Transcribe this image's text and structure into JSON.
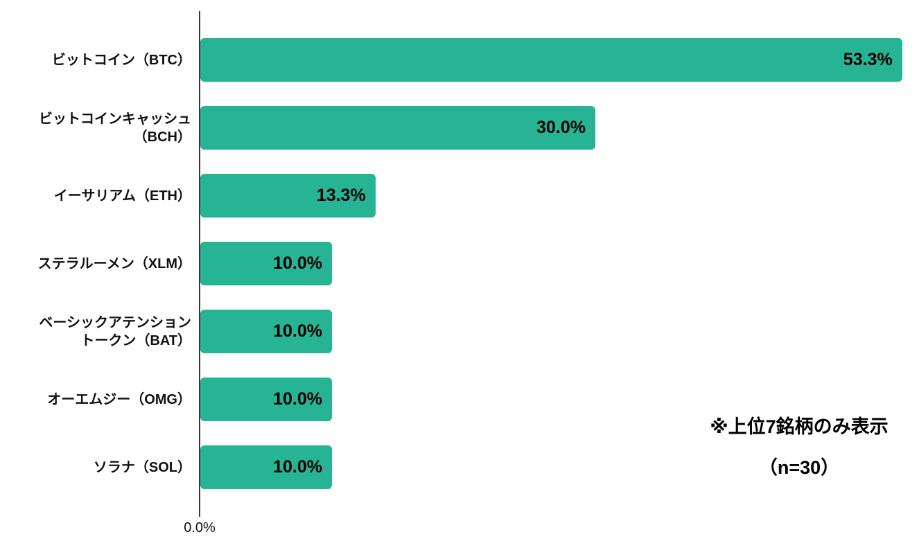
{
  "chart_data": {
    "type": "bar",
    "orientation": "horizontal",
    "categories": [
      "ビットコイン（BTC）",
      "ビットコインキャッシュ\n（BCH）",
      "イーサリアム（ETH）",
      "ステラルーメン（XLM）",
      "ベーシックアテンション\nトークン（BAT）",
      "オーエムジー（OMG）",
      "ソラナ（SOL）"
    ],
    "values": [
      53.3,
      30.0,
      13.3,
      10.0,
      10.0,
      10.0,
      10.0
    ],
    "value_labels": [
      "53.3%",
      "30.0%",
      "13.3%",
      "10.0%",
      "10.0%",
      "10.0%",
      "10.0%"
    ],
    "xlim": [
      0,
      55
    ],
    "x_ticks": [
      {
        "value": 0,
        "label": "0.0%"
      }
    ],
    "grid": false,
    "legend": false,
    "bar_color": "#27b495",
    "axis_color": "#3a3a3a",
    "annotations": [
      "※上位7銘柄のみ表示",
      "（n=30）"
    ]
  }
}
